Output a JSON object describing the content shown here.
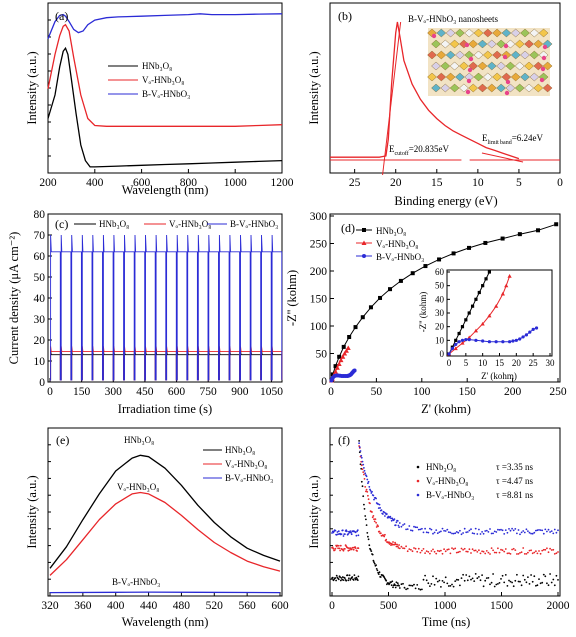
{
  "panels": {
    "a": {
      "letter": "(a)",
      "xlabel": "Wavelength (nm)",
      "ylabel": "Intensity (a.u.)",
      "xticks": [
        "200",
        "400",
        "600",
        "800",
        "1000",
        "1200"
      ],
      "legend": [
        "HNb₃O₈",
        "Vₒ-HNb₃O₈",
        "B-Vₒ-HNbO₃"
      ]
    },
    "b": {
      "letter": "(b)",
      "xlabel": "Binding energy (eV)",
      "ylabel": "Intensity (a.u.)",
      "xticks": [
        "25",
        "20",
        "15",
        "10",
        "5",
        "0"
      ],
      "inset_title": "B-Vₒ-HNbO₃ nanosheets",
      "cutoff_label": "E",
      "cutoff_sub": "cutoff",
      "cutoff_value": "=20.835eV",
      "limit_label": "E",
      "limit_sub": "limit band",
      "limit_value": "=6.24eV"
    },
    "c": {
      "letter": "(c)",
      "xlabel": "Irradiation time (s)",
      "ylabel": "Current density (μA cm⁻²)",
      "xticks": [
        "0",
        "150",
        "300",
        "450",
        "600",
        "750",
        "900",
        "1050"
      ],
      "yticks": [
        "0",
        "10",
        "20",
        "30",
        "40",
        "50",
        "60",
        "70",
        "80"
      ],
      "legend": [
        "HNb₃O₈",
        "Vₒ-HNb₃O₈",
        "B-Vₒ-HNbO₃"
      ]
    },
    "d": {
      "letter": "(d)",
      "xlabel": "Z' (kohm)",
      "ylabel": "-Z'' (kohm)",
      "xticks": [
        "0",
        "50",
        "100",
        "150",
        "200",
        "250"
      ],
      "yticks": [
        "0",
        "50",
        "100",
        "150",
        "200",
        "250",
        "300"
      ],
      "legend": [
        "HNb₃O₈",
        "Vₒ-HNb₃O₈",
        "B-Vₒ-HNbO₃"
      ],
      "inset_xlabel": "Z' (kohm)",
      "inset_ylabel": "-Z'' (kohm)",
      "inset_xticks": [
        "0",
        "5",
        "10",
        "15",
        "20",
        "25",
        "30"
      ],
      "inset_yticks": [
        "0",
        "10",
        "20",
        "30",
        "40",
        "50",
        "60"
      ]
    },
    "e": {
      "letter": "(e)",
      "xlabel": "Wavelength (nm)",
      "ylabel": "Intensity (a.u.)",
      "xticks": [
        "320",
        "360",
        "400",
        "440",
        "480",
        "520",
        "560",
        "600"
      ],
      "legend": [
        "HNb₃O₈",
        "Vₒ-HNb₃O₈",
        "B-Vₒ-HNbO₃"
      ],
      "annotations": [
        "HNb₃O₈",
        "Vₒ-HNb₃O₈",
        "B-Vₒ-HNbO₃"
      ]
    },
    "f": {
      "letter": "(f)",
      "xlabel": "Time (ns)",
      "ylabel": "Intensity (a.u.)",
      "xticks": [
        "0",
        "500",
        "1000",
        "1500",
        "2000"
      ],
      "legend": [
        "HNb₃O₈",
        "Vₒ-HNb₃O₈",
        "B-Vₒ-HNbO₃"
      ],
      "taus": [
        "τ =3.35 ns",
        "τ =4.47 ns",
        "τ =8.81 ns"
      ]
    }
  },
  "colors": {
    "black": "#000000",
    "red": "#e8262a",
    "blue": "#2b2bd6"
  },
  "chart_data": [
    {
      "type": "line",
      "panel": "a",
      "xlabel": "Wavelength (nm)",
      "ylabel": "Intensity (a.u.)",
      "xlim": [
        200,
        1200
      ],
      "series": [
        {
          "name": "HNb₃O₈",
          "x": [
            200,
            230,
            250,
            265,
            275,
            285,
            300,
            320,
            340,
            360,
            380,
            400,
            500,
            600,
            700,
            800,
            900,
            1000,
            1100,
            1200
          ],
          "y": [
            0.33,
            0.48,
            0.66,
            0.76,
            0.78,
            0.74,
            0.58,
            0.36,
            0.16,
            0.06,
            0.02,
            0.02,
            0.025,
            0.03,
            0.035,
            0.04,
            0.045,
            0.05,
            0.055,
            0.06
          ]
        },
        {
          "name": "Vₒ-HNb₃O₈",
          "x": [
            200,
            230,
            250,
            265,
            275,
            290,
            310,
            340,
            370,
            400,
            450,
            500,
            600,
            700,
            800,
            900,
            1000,
            1100,
            1200
          ],
          "y": [
            0.52,
            0.74,
            0.86,
            0.92,
            0.93,
            0.89,
            0.72,
            0.48,
            0.33,
            0.285,
            0.28,
            0.28,
            0.28,
            0.28,
            0.28,
            0.28,
            0.28,
            0.285,
            0.29
          ]
        },
        {
          "name": "B-Vₒ-HNbO₃",
          "x": [
            200,
            230,
            250,
            265,
            275,
            290,
            310,
            330,
            350,
            370,
            400,
            450,
            500,
            600,
            700,
            800,
            850,
            900,
            1000,
            1100,
            1200
          ],
          "y": [
            0.84,
            0.95,
            0.99,
            0.995,
            0.985,
            0.95,
            0.9,
            0.88,
            0.89,
            0.93,
            0.96,
            0.975,
            0.98,
            0.985,
            0.99,
            0.995,
            1.0,
            0.995,
            0.995,
            0.998,
            1.0
          ]
        }
      ]
    },
    {
      "type": "line",
      "panel": "b",
      "xlabel": "Binding energy (eV)",
      "ylabel": "Intensity (a.u.)",
      "xlim": [
        28,
        0
      ],
      "series": [
        {
          "name": "",
          "x": [
            28,
            22,
            21.2,
            20.9,
            20.5,
            20.0,
            19.8,
            19.5,
            19.0,
            18.0,
            17.0,
            16.0,
            15.0,
            14.0,
            13.0,
            12.0,
            11.0,
            10.0,
            9.0,
            8.0,
            7.0,
            6.0,
            5.0
          ],
          "y": [
            0.02,
            0.02,
            0.03,
            0.15,
            0.55,
            0.92,
            1.0,
            0.9,
            0.72,
            0.55,
            0.44,
            0.36,
            0.3,
            0.25,
            0.21,
            0.18,
            0.15,
            0.12,
            0.09,
            0.07,
            0.05,
            0.03,
            0.01
          ]
        }
      ]
    },
    {
      "type": "line",
      "panel": "c",
      "xlabel": "Irradiation time (s)",
      "ylabel": "Current density (μA cm⁻²)",
      "xlim": [
        0,
        1100
      ],
      "ylim": [
        0,
        80
      ],
      "period_s": 50,
      "series": [
        {
          "name": "HNb₃O₈",
          "on_steady": 13,
          "spike": 15,
          "off": 1
        },
        {
          "name": "Vₒ-HNb₃O₈",
          "on_steady": 14.5,
          "spike": 17,
          "off": 1
        },
        {
          "name": "B-Vₒ-HNbO₃",
          "on_steady": 62,
          "spike": 70,
          "off": 1
        }
      ]
    },
    {
      "type": "scatter",
      "panel": "d",
      "xlabel": "Z' (kohm)",
      "ylabel": "-Z'' (kohm)",
      "xlim": [
        0,
        250
      ],
      "ylim": [
        0,
        300
      ],
      "series": [
        {
          "name": "HNb₃O₈",
          "x": [
            0.5,
            2,
            5,
            9,
            14,
            20,
            27,
            35,
            44,
            54,
            65,
            77,
            90,
            104,
            119,
            135,
            152,
            170,
            189,
            208,
            228,
            248
          ],
          "y": [
            2,
            12,
            27,
            44,
            62,
            80,
            98,
            116,
            134,
            151,
            167,
            182,
            196,
            209,
            221,
            232,
            242,
            251,
            259,
            267,
            274,
            285
          ]
        },
        {
          "name": "Vₒ-HNb₃O₈",
          "x": [
            0.5,
            1.5,
            3,
            5,
            7,
            9,
            11,
            13,
            15,
            17,
            19
          ],
          "y": [
            1,
            4,
            10,
            17,
            24,
            31,
            38,
            44,
            50,
            55,
            60
          ]
        },
        {
          "name": "B-Vₒ-HNbO₃",
          "x": [
            0.5,
            1,
            2,
            4,
            6,
            8,
            10,
            12,
            14,
            16,
            18,
            19,
            20,
            21,
            22,
            23,
            24,
            25,
            26
          ],
          "y": [
            1,
            3,
            6,
            9,
            10,
            10,
            9.5,
            9,
            9,
            9,
            9,
            9.5,
            10,
            11,
            12,
            14,
            16,
            18,
            19
          ]
        }
      ],
      "inset": {
        "xlim": [
          0,
          30
        ],
        "ylim": [
          0,
          60
        ],
        "series": [
          {
            "name": "HNb₃O₈",
            "x": [
              0,
              1,
              2,
              3,
              4,
              5,
              6,
              7,
              8,
              9,
              10,
              11,
              12
            ],
            "y": [
              0,
              5,
              10,
              15,
              20,
              25,
              30,
              35,
              40,
              45,
              50,
              55,
              60
            ]
          },
          {
            "name": "Vₒ-HNb₃O₈",
            "x": [
              0,
              2,
              4,
              6,
              8,
              10,
              12,
              14,
              16,
              17,
              18
            ],
            "y": [
              0,
              4,
              8,
              12,
              17,
              22,
              28,
              35,
              44,
              50,
              57
            ]
          },
          {
            "name": "B-Vₒ-HNbO₃",
            "x": [
              0,
              1,
              2,
              3,
              4,
              5,
              6,
              8,
              10,
              12,
              14,
              16,
              18,
              19,
              20,
              21,
              22,
              23,
              24,
              25,
              26
            ],
            "y": [
              0,
              4,
              7,
              9,
              10,
              10.5,
              10.5,
              10,
              9.5,
              9,
              9,
              9,
              9,
              9.5,
              10,
              11,
              12.5,
              14,
              16,
              18,
              19
            ]
          }
        ]
      }
    },
    {
      "type": "line",
      "panel": "e",
      "xlabel": "Wavelength (nm)",
      "ylabel": "Intensity (a.u.)",
      "xlim": [
        320,
        600
      ],
      "series": [
        {
          "name": "HNb₃O₈",
          "x": [
            320,
            340,
            360,
            380,
            400,
            420,
            430,
            440,
            460,
            480,
            500,
            520,
            540,
            560,
            580,
            600
          ],
          "y": [
            0.18,
            0.33,
            0.52,
            0.7,
            0.86,
            0.95,
            0.97,
            0.96,
            0.88,
            0.76,
            0.62,
            0.5,
            0.4,
            0.32,
            0.27,
            0.23
          ]
        },
        {
          "name": "Vₒ-HNb₃O₈",
          "x": [
            320,
            340,
            360,
            380,
            400,
            420,
            430,
            440,
            460,
            480,
            500,
            520,
            540,
            560,
            580,
            600
          ],
          "y": [
            0.13,
            0.24,
            0.38,
            0.52,
            0.63,
            0.7,
            0.71,
            0.7,
            0.64,
            0.55,
            0.45,
            0.36,
            0.29,
            0.23,
            0.19,
            0.16
          ]
        },
        {
          "name": "B-Vₒ-HNbO₃",
          "x": [
            320,
            400,
            440,
            500,
            600
          ],
          "y": [
            0.01,
            0.012,
            0.013,
            0.012,
            0.01
          ]
        }
      ]
    },
    {
      "type": "scatter",
      "panel": "f",
      "xlabel": "Time (ns)",
      "ylabel": "Intensity (a.u.)",
      "xlim": [
        0,
        2000
      ],
      "series": [
        {
          "name": "HNb₃O₈",
          "tau_ns": 3.35,
          "pre": 0.08,
          "peak": 1.0,
          "tail": 0.02
        },
        {
          "name": "Vₒ-HNb₃O₈",
          "tau_ns": 4.47,
          "pre": 0.28,
          "peak": 0.98,
          "tail": 0.26
        },
        {
          "name": "B-Vₒ-HNbO₃",
          "tau_ns": 8.81,
          "pre": 0.38,
          "peak": 0.98,
          "tail": 0.39
        }
      ]
    }
  ]
}
